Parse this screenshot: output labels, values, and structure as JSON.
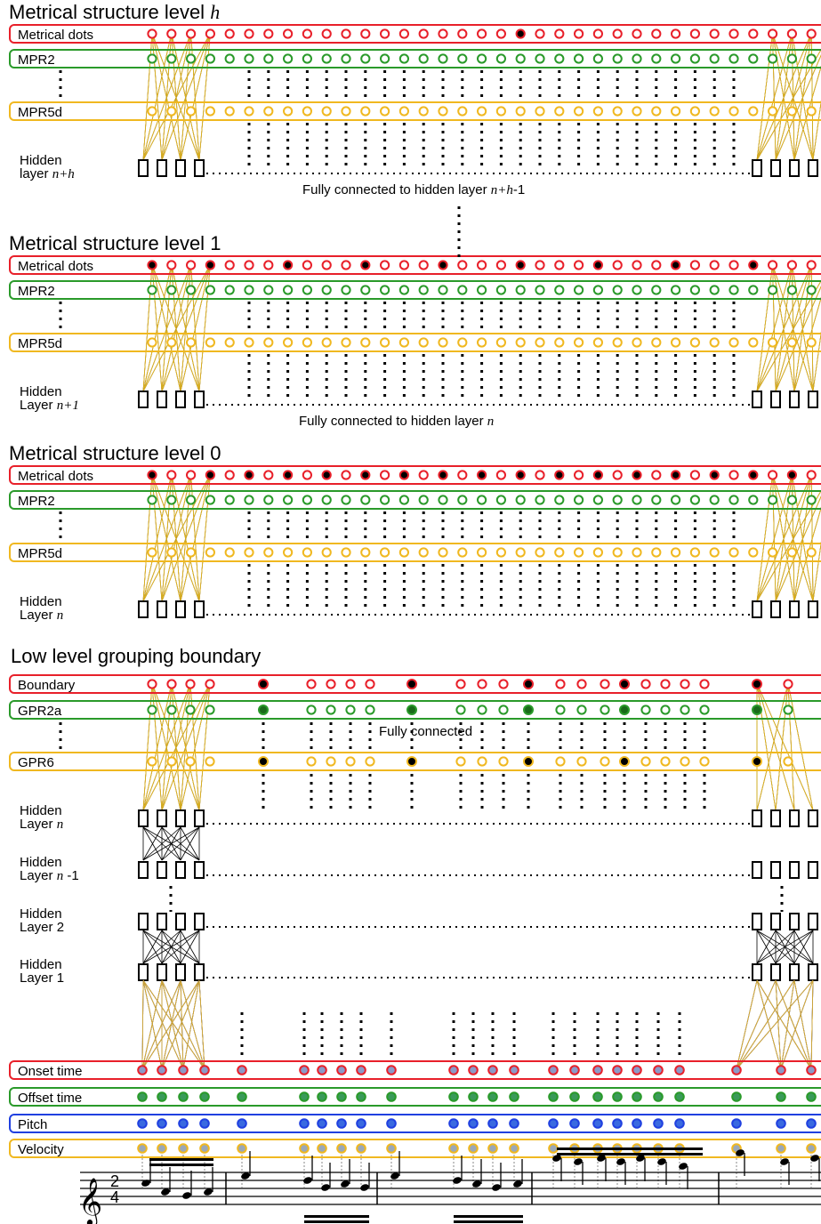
{
  "colors": {
    "red": "#e8202a",
    "green": "#2a9a2a",
    "yellow": "#f0b820",
    "blue": "#2040e0",
    "black": "#000000",
    "onset_fill": "#8a9ac8",
    "offset_fill": "#3a9a5a",
    "pitch_fill": "#3a6ae0",
    "velocity_fill": "#9aa8b8"
  },
  "metrical_sections": [
    {
      "title": "Metrical structure level",
      "title_symbol": "h",
      "rows": [
        "Metrical dots",
        "MPR2",
        "MPR5d"
      ],
      "hidden_label": "Hidden",
      "hidden_sub": "layer",
      "hidden_sub_italic": "n+h",
      "filled_dots": [
        19
      ],
      "note_prefix": "Fully connected to hidden layer",
      "note_italic": "n+h",
      "note_suffix": "-1"
    },
    {
      "title": "Metrical structure level",
      "title_symbol": "1",
      "rows": [
        "Metrical dots",
        "MPR2",
        "MPR5d"
      ],
      "hidden_label": "Hidden",
      "hidden_sub": "Layer",
      "hidden_sub_italic": "n+1",
      "filled_dots": [
        0,
        3,
        7,
        11,
        15,
        19,
        23,
        27,
        31
      ],
      "note_prefix": "Fully connected to hidden layer",
      "note_italic": "n",
      "note_suffix": ""
    },
    {
      "title": "Metrical structure level",
      "title_symbol": "0",
      "rows": [
        "Metrical dots",
        "MPR2",
        "MPR5d"
      ],
      "hidden_label": "Hidden",
      "hidden_sub": "Layer",
      "hidden_sub_italic": "n",
      "filled_dots": [
        0,
        3,
        5,
        7,
        9,
        11,
        13,
        15,
        17,
        19,
        21,
        23,
        25,
        27,
        29,
        31,
        33
      ],
      "note_prefix": "",
      "note_italic": "",
      "note_suffix": ""
    }
  ],
  "grouping": {
    "title": "Low level grouping boundary",
    "rows": [
      "Boundary",
      "GPR2a",
      "GPR6"
    ],
    "hidden_layers": [
      {
        "label": "Hidden",
        "sub": "Layer",
        "sub_italic": "n",
        "suffix": ""
      },
      {
        "label": "Hidden",
        "sub": "Layer",
        "sub_italic": "n",
        "suffix": " -1"
      },
      {
        "label": "Hidden",
        "sub": "Layer 2",
        "sub_italic": "",
        "suffix": ""
      },
      {
        "label": "Hidden",
        "sub": "Layer 1",
        "sub_italic": "",
        "suffix": ""
      }
    ],
    "fully_connected": "Fully connected",
    "inputs": [
      "Onset time",
      "Offset time",
      "Pitch",
      "Velocity"
    ],
    "time_signature_top": "2",
    "time_signature_bottom": "4"
  }
}
